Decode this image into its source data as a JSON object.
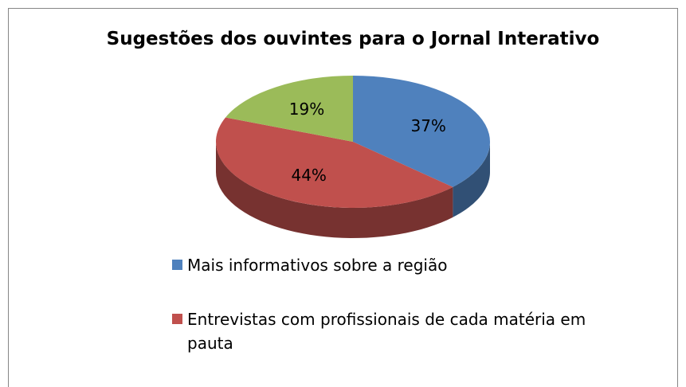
{
  "chart_data": {
    "type": "pie3d",
    "title": "Sugestões dos ouvintes para o Jornal Interativo",
    "categories": [
      "Mais informativos sobre a região",
      "Entrevistas com profissionais de cada matéria em pauta",
      null
    ],
    "values": [
      37,
      44,
      19
    ],
    "value_labels": [
      "37%",
      "44%",
      "19%"
    ],
    "colors": [
      "#4f81bd",
      "#c0504d",
      "#9bbb59"
    ],
    "legend": "bottom"
  }
}
